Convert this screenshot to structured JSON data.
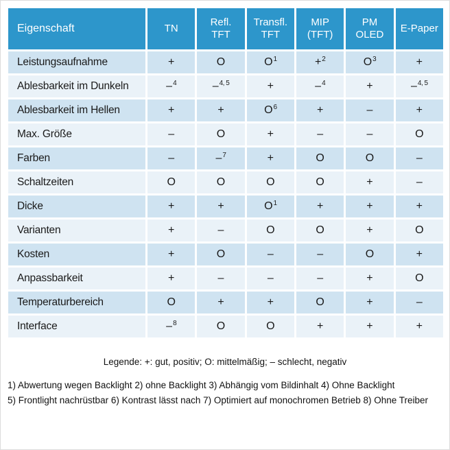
{
  "colors": {
    "header_bg": "#2d96cb",
    "row_odd": "#cfe3f1",
    "row_even": "#eaf2f8",
    "header_text": "#ffffff",
    "cell_text": "#1a1a1a"
  },
  "chart_data": {
    "type": "table",
    "title": "",
    "columns": [
      {
        "id": "eigenschaft",
        "label": "Eigenschaft"
      },
      {
        "id": "tn",
        "label": "TN"
      },
      {
        "id": "refl-tft",
        "label": "Refl.\nTFT"
      },
      {
        "id": "transfl-tft",
        "label": "Transfl.\nTFT"
      },
      {
        "id": "mip-tft",
        "label": "MIP\n(TFT)"
      },
      {
        "id": "pm-oled",
        "label": "PM\nOLED"
      },
      {
        "id": "e-paper",
        "label": "E-Paper"
      }
    ],
    "rows": [
      {
        "label": "Leistungsaufnahme",
        "cells": [
          {
            "v": "+"
          },
          {
            "v": "O"
          },
          {
            "v": "O",
            "sup": "1"
          },
          {
            "v": "+",
            "sup": "2"
          },
          {
            "v": "O",
            "sup": "3"
          },
          {
            "v": "+"
          }
        ]
      },
      {
        "label": "Ablesbarkeit im Dunkeln",
        "cells": [
          {
            "v": "–",
            "sup": "4"
          },
          {
            "v": "–",
            "sup": "4, 5"
          },
          {
            "v": "+"
          },
          {
            "v": "–",
            "sup": "4"
          },
          {
            "v": "+"
          },
          {
            "v": "–",
            "sup": "4, 5"
          }
        ]
      },
      {
        "label": "Ablesbarkeit im Hellen",
        "cells": [
          {
            "v": "+"
          },
          {
            "v": "+"
          },
          {
            "v": "O",
            "sup": "6"
          },
          {
            "v": "+"
          },
          {
            "v": "–"
          },
          {
            "v": "+"
          }
        ]
      },
      {
        "label": "Max. Größe",
        "cells": [
          {
            "v": "–"
          },
          {
            "v": "O"
          },
          {
            "v": "+"
          },
          {
            "v": "–"
          },
          {
            "v": "–"
          },
          {
            "v": "O"
          }
        ]
      },
      {
        "label": "Farben",
        "cells": [
          {
            "v": "–"
          },
          {
            "v": "–",
            "sup": "7"
          },
          {
            "v": "+"
          },
          {
            "v": "O"
          },
          {
            "v": "O"
          },
          {
            "v": "–"
          }
        ]
      },
      {
        "label": "Schaltzeiten",
        "cells": [
          {
            "v": "O"
          },
          {
            "v": "O"
          },
          {
            "v": "O"
          },
          {
            "v": "O"
          },
          {
            "v": "+"
          },
          {
            "v": "–"
          }
        ]
      },
      {
        "label": "Dicke",
        "cells": [
          {
            "v": "+"
          },
          {
            "v": "+"
          },
          {
            "v": "O",
            "sup": "1"
          },
          {
            "v": "+"
          },
          {
            "v": "+"
          },
          {
            "v": "+"
          }
        ]
      },
      {
        "label": "Varianten",
        "cells": [
          {
            "v": "+"
          },
          {
            "v": "–"
          },
          {
            "v": "O"
          },
          {
            "v": "O"
          },
          {
            "v": "+"
          },
          {
            "v": "O"
          }
        ]
      },
      {
        "label": "Kosten",
        "cells": [
          {
            "v": "+"
          },
          {
            "v": "O"
          },
          {
            "v": "–"
          },
          {
            "v": "–"
          },
          {
            "v": "O"
          },
          {
            "v": "+"
          }
        ]
      },
      {
        "label": "Anpassbarkeit",
        "cells": [
          {
            "v": "+"
          },
          {
            "v": "–"
          },
          {
            "v": "–"
          },
          {
            "v": "–"
          },
          {
            "v": "+"
          },
          {
            "v": "O"
          }
        ]
      },
      {
        "label": "Temperaturbereich",
        "cells": [
          {
            "v": "O"
          },
          {
            "v": "+"
          },
          {
            "v": "+"
          },
          {
            "v": "O"
          },
          {
            "v": "+"
          },
          {
            "v": "–"
          }
        ]
      },
      {
        "label": "Interface",
        "cells": [
          {
            "v": "–",
            "sup": "8"
          },
          {
            "v": "O"
          },
          {
            "v": "O"
          },
          {
            "v": "+"
          },
          {
            "v": "+"
          },
          {
            "v": "+"
          }
        ]
      }
    ]
  },
  "legend": "Legende: +: gut, positiv; O: mittelmäßig; – schlecht, negativ",
  "footnotes": [
    "1) Abwertung wegen Backlight 2) ohne Backlight 3) Abhängig vom Bildinhalt 4) Ohne Backlight",
    "5) Frontlight nachrüstbar 6) Kontrast lässt nach 7) Optimiert auf monochromen Betrieb 8) Ohne Treiber"
  ]
}
